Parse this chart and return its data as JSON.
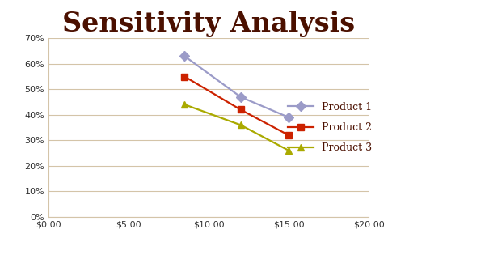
{
  "title": "Sensitivity Analysis",
  "title_color": "#4B1000",
  "title_fontsize": 24,
  "title_fontweight": "bold",
  "background_color": "#FFFFFF",
  "plot_bg_color": "#FFFFFF",
  "grid_color": "#D4C4A8",
  "series": [
    {
      "label": "Product 1",
      "x": [
        8.5,
        12.0,
        15.0
      ],
      "y": [
        0.63,
        0.47,
        0.39
      ],
      "color": "#9B9BC8",
      "marker": "D",
      "marker_size": 6,
      "linewidth": 1.6
    },
    {
      "label": "Product 2",
      "x": [
        8.5,
        12.0,
        15.0
      ],
      "y": [
        0.55,
        0.42,
        0.32
      ],
      "color": "#CC2200",
      "marker": "s",
      "marker_size": 6,
      "linewidth": 1.6
    },
    {
      "label": "Product 3",
      "x": [
        8.5,
        12.0,
        15.0
      ],
      "y": [
        0.44,
        0.36,
        0.26
      ],
      "color": "#AAAA00",
      "marker": "^",
      "marker_size": 6,
      "linewidth": 1.6
    }
  ],
  "xlim": [
    0,
    20
  ],
  "ylim": [
    0,
    0.7
  ],
  "xticks": [
    0,
    5,
    10,
    15,
    20
  ],
  "yticks": [
    0.0,
    0.1,
    0.2,
    0.3,
    0.4,
    0.5,
    0.6,
    0.7
  ],
  "legend_fontsize": 9,
  "tick_labelsize": 8,
  "legend_text_color": "#4B1000"
}
